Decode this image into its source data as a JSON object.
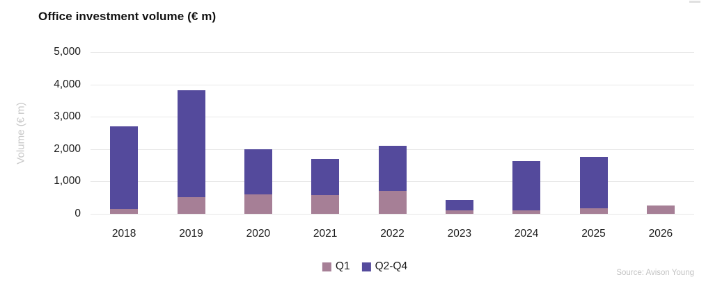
{
  "header": {
    "title": "Office investment volume (€ m)"
  },
  "colors": {
    "q1": "#a67f96",
    "q2_q4": "#544a9c",
    "gridline": "#e7e7e7",
    "axis_text": "#1a1a1a",
    "muted_text": "#c7c7c7"
  },
  "chart_data": {
    "type": "bar",
    "stacked": true,
    "title": "Office investment volume (€ m)",
    "categories": [
      "2018",
      "2019",
      "2020",
      "2021",
      "2022",
      "2023",
      "2024",
      "2025",
      "2026"
    ],
    "series": [
      {
        "name": "Q1",
        "color": "#a67f96",
        "values": [
          150,
          520,
          600,
          580,
          700,
          100,
          100,
          180,
          250
        ]
      },
      {
        "name": "Q2-Q4",
        "color": "#544a9c",
        "values": [
          2550,
          3310,
          1400,
          1120,
          1410,
          330,
          1530,
          1580,
          0
        ]
      }
    ],
    "xlabel": "",
    "ylabel": "Volume (€ m)",
    "ylim": [
      0,
      5000
    ],
    "y_ticks": [
      0,
      1000,
      2000,
      3000,
      4000,
      5000
    ],
    "y_tick_labels": [
      "0",
      "1,000",
      "2,000",
      "3,000",
      "4,000",
      "5,000"
    ],
    "grid": true,
    "legend_position": "bottom-center"
  },
  "footer": {
    "source": "Source: Avison Young"
  }
}
